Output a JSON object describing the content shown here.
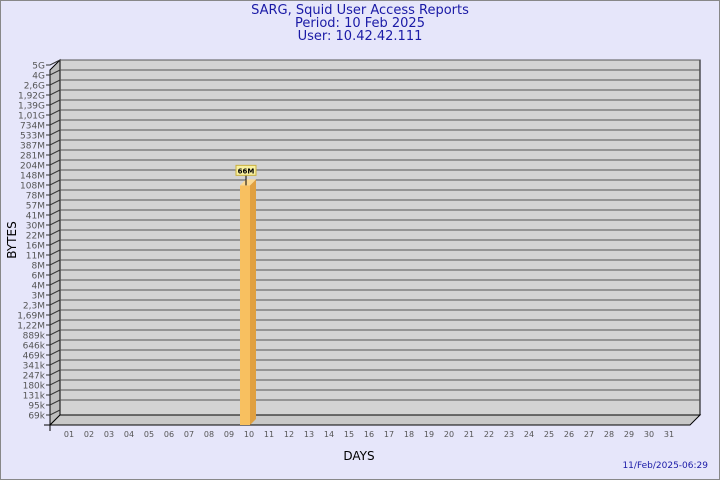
{
  "header": {
    "title": "SARG, Squid User Access Reports",
    "period": "Period: 10 Feb 2025",
    "user": "User: 10.42.42.111"
  },
  "footer": {
    "timestamp": "11/Feb/2025-06:29"
  },
  "colors": {
    "background": "#e6e6fa",
    "plot": "#d3d3d3",
    "bar": "#f8c060",
    "bar_side": "#e0a040",
    "title": "#1a1aa6"
  },
  "chart_data": {
    "type": "bar",
    "xlabel": "DAYS",
    "ylabel": "BYTES",
    "categories": [
      "01",
      "02",
      "03",
      "04",
      "05",
      "06",
      "07",
      "08",
      "09",
      "10",
      "11",
      "12",
      "13",
      "14",
      "15",
      "16",
      "17",
      "18",
      "19",
      "20",
      "21",
      "22",
      "23",
      "24",
      "25",
      "26",
      "27",
      "28",
      "29",
      "30",
      "31"
    ],
    "y_tick_labels": [
      "69k",
      "95k",
      "131k",
      "180k",
      "247k",
      "341k",
      "469k",
      "646k",
      "889k",
      "1,22M",
      "1,69M",
      "2,3M",
      "3M",
      "4M",
      "6M",
      "8M",
      "11M",
      "16M",
      "22M",
      "30M",
      "41M",
      "57M",
      "78M",
      "108M",
      "148M",
      "204M",
      "281M",
      "387M",
      "533M",
      "734M",
      "1,01G",
      "1,39G",
      "1,92G",
      "2,6G",
      "4G",
      "5G"
    ],
    "scale": "log",
    "grid": true,
    "series": [
      {
        "values": [
          null,
          null,
          null,
          null,
          null,
          null,
          null,
          null,
          null,
          66000000,
          null,
          null,
          null,
          null,
          null,
          null,
          null,
          null,
          null,
          null,
          null,
          null,
          null,
          null,
          null,
          null,
          null,
          null,
          null,
          null,
          null
        ],
        "data_labels": {
          "10": "66M"
        }
      }
    ]
  }
}
